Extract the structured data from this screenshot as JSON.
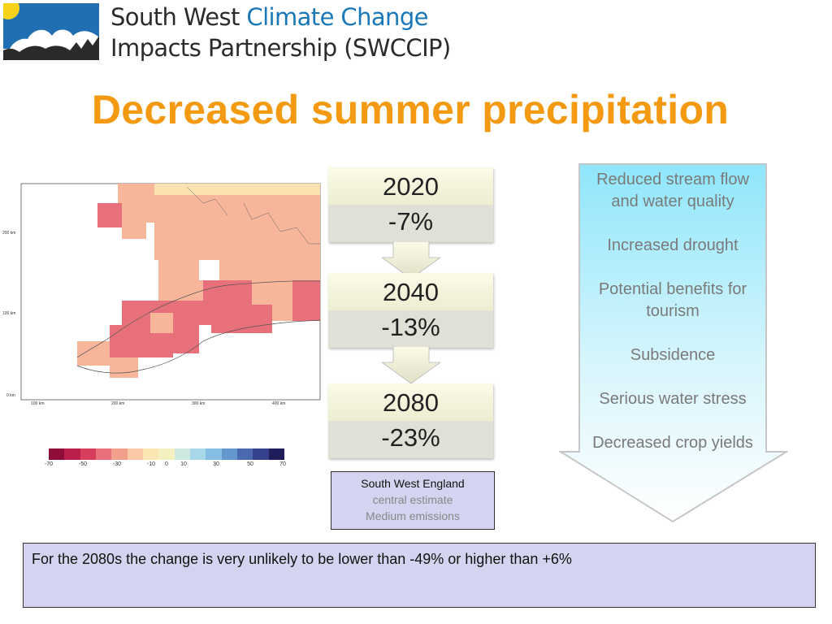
{
  "header": {
    "org_line1_plain": "South West ",
    "org_line1_accent": "Climate Change",
    "org_line2": "Impacts Partnership (SWCCIP)",
    "logo_icon": "sun-cloud-landscape-logo"
  },
  "title": "Decreased summer precipitation",
  "map": {
    "y_ticks": [
      "200 km",
      "100 km",
      "0 km"
    ],
    "x_ticks": [
      "100 km",
      "200 km",
      "300 km",
      "400 km"
    ],
    "scale_labels": [
      "-70",
      "-50",
      "-30",
      "-10",
      "0",
      "10",
      "30",
      "50",
      "70"
    ],
    "scale_colors": [
      "#8e0d3a",
      "#bd1f4c",
      "#d83d5e",
      "#e8707a",
      "#f2a08c",
      "#f8c9a4",
      "#fbe6b3",
      "#f4f0c0",
      "#cde8e0",
      "#a9d7ea",
      "#86bde3",
      "#6597cf",
      "#4a69b0",
      "#35418e",
      "#1f1d5c"
    ]
  },
  "timeline": [
    {
      "year": "2020",
      "change": "-7%"
    },
    {
      "year": "2040",
      "change": "-13%"
    },
    {
      "year": "2080",
      "change": "-23%"
    }
  ],
  "estimate": {
    "line1": "South West England",
    "line2": "central estimate",
    "line3": "Medium emissions"
  },
  "impacts": [
    "Reduced stream flow and water quality",
    "Increased drought",
    "Potential benefits for tourism",
    "Subsidence",
    "Serious water stress",
    "Decreased crop yields"
  ],
  "note": "For the 2080s the change is very unlikely to be lower than -49% or higher than  +6%"
}
